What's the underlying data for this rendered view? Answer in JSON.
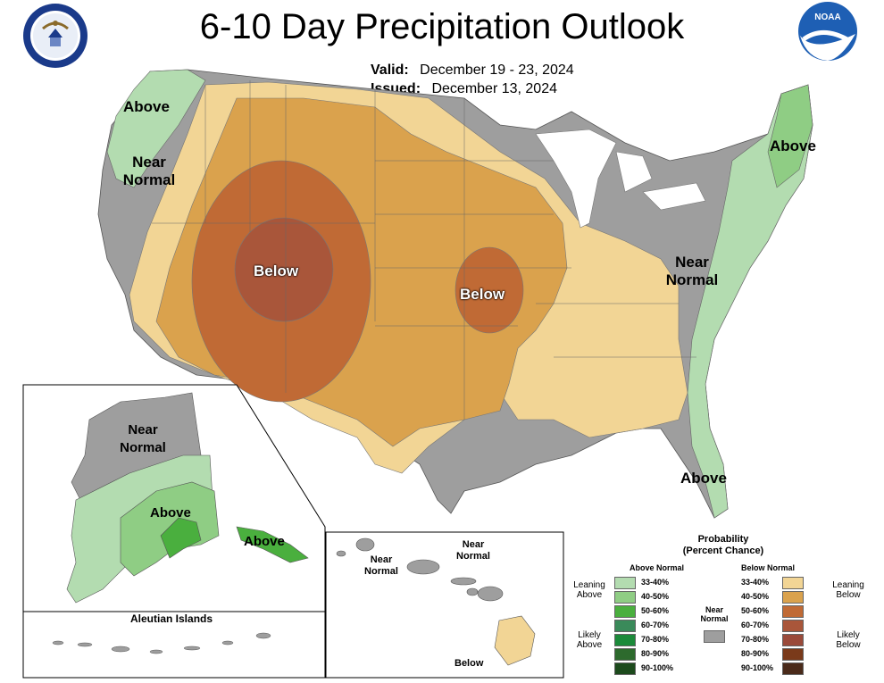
{
  "title": "6-10 Day Precipitation Outlook",
  "valid_label": "Valid:",
  "valid_dates": "December 19 - 23, 2024",
  "issued_label": "Issued:",
  "issued_date": "December 13, 2024",
  "logos": {
    "left": "Department of Commerce seal",
    "left_text": "DEPARTMENT OF COMMERCE · UNITED STATES OF AMERICA",
    "right": "NOAA logo",
    "right_text": "NOAA"
  },
  "labels": {
    "above_nw": "Above",
    "near_normal_w": "Near Normal",
    "below_west": "Below",
    "below_central": "Below",
    "near_normal_east": "Near Normal",
    "above_ne": "Above",
    "above_fl": "Above",
    "ak_near_normal": "Near Normal",
    "ak_above": "Above",
    "ak_above_se": "Above",
    "aleutian": "Aleutian Islands",
    "hi_near_normal_1": "Near Normal",
    "hi_near_normal_2": "Near Normal",
    "hi_below": "Below"
  },
  "legend": {
    "title": "Probability",
    "subtitle": "(Percent Chance)",
    "above_header": "Above Normal",
    "below_header": "Below Normal",
    "near_normal": "Near Normal",
    "leaning_above": "Leaning Above",
    "likely_above": "Likely Above",
    "leaning_below": "Leaning Below",
    "likely_below": "Likely Below",
    "ranges": [
      "33-40%",
      "40-50%",
      "50-60%",
      "60-70%",
      "70-80%",
      "80-90%",
      "90-100%"
    ],
    "above_colors": [
      "#b3dcb0",
      "#8fcd84",
      "#4aaf3e",
      "#3a8a5a",
      "#1b8a3a",
      "#2d6a2d",
      "#1c4a1c"
    ],
    "below_colors": [
      "#f2d595",
      "#daa24d",
      "#c06a35",
      "#a9563a",
      "#9a4a3a",
      "#7a3a1a",
      "#4a2a1a"
    ],
    "near_color": "#9e9e9e"
  }
}
